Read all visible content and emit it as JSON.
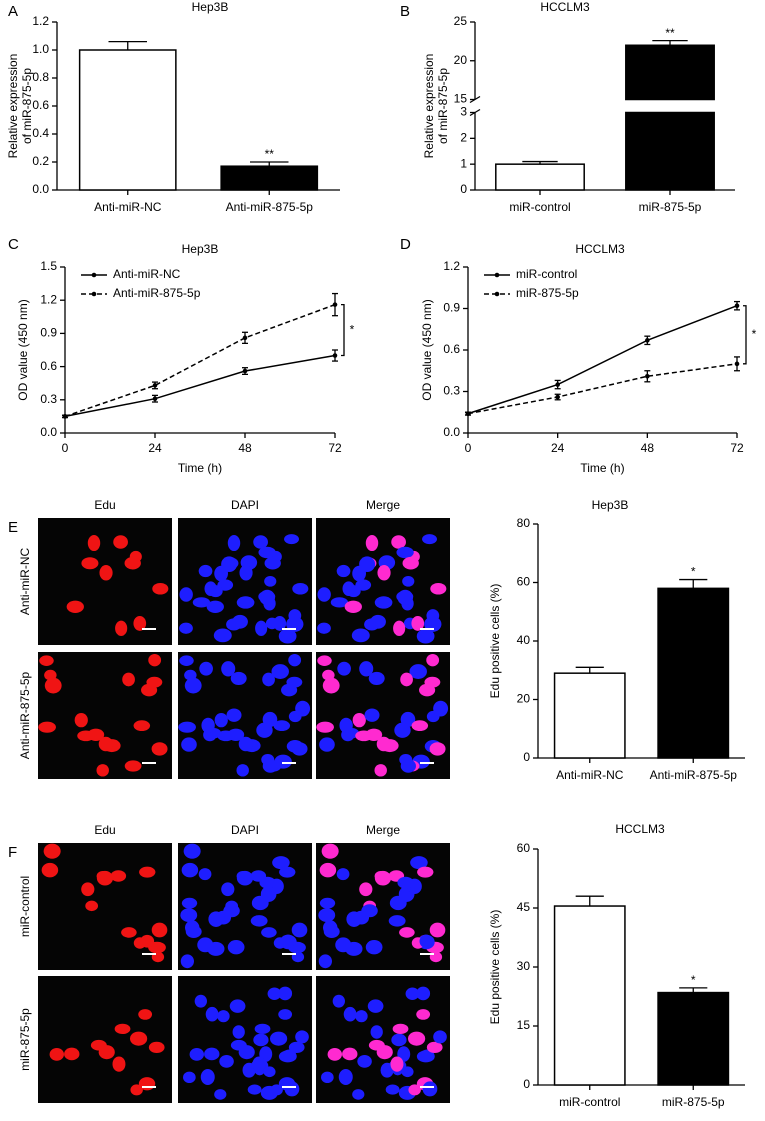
{
  "chart_data": [
    {
      "type": "bar",
      "panel": "A",
      "title": "Hep3B",
      "y_label": [
        "Relative expression",
        "of miR-875-5p"
      ],
      "categories": [
        "Anti-miR-NC",
        "Anti-miR-875-5p"
      ],
      "values": [
        1.0,
        0.17
      ],
      "errors": [
        0.06,
        0.03
      ],
      "colors": [
        "#ffffff",
        "#000000"
      ],
      "value_annotations": [
        null,
        "**"
      ],
      "ylim": [
        0,
        1.2
      ],
      "yticks": [
        {
          "value": 0,
          "label": "0.0"
        },
        0.2,
        0.4,
        0.6,
        0.8,
        {
          "value": 1,
          "label": "1.0"
        },
        1.2
      ]
    },
    {
      "type": "bar",
      "panel": "B",
      "title": "HCCLM3",
      "y_label": [
        "Relative expression",
        "of miR-875-5p"
      ],
      "categories": [
        "miR-control",
        "miR-875-5p"
      ],
      "values": [
        1.0,
        22.0
      ],
      "errors": [
        0.1,
        0.6
      ],
      "colors": [
        "#ffffff",
        "#000000"
      ],
      "value_annotations": [
        null,
        "**"
      ],
      "ylim_segments": [
        [
          0,
          3
        ],
        [
          15,
          25
        ]
      ],
      "yticks": [
        0,
        1,
        2,
        3,
        15,
        20,
        25
      ]
    },
    {
      "type": "line",
      "panel": "C",
      "title": "Hep3B",
      "x_label": "Time (h)",
      "y_label": "OD value (450 nm)",
      "x": [
        0,
        24,
        48,
        72
      ],
      "xlim": [
        0,
        72
      ],
      "xticks": [
        0,
        24,
        48,
        72
      ],
      "ylim": [
        0,
        1.5
      ],
      "yticks": [
        {
          "value": 0,
          "label": "0.0"
        },
        0.3,
        0.6,
        0.9,
        1.2,
        1.5
      ],
      "series": [
        {
          "name": "Anti-miR-NC",
          "color": "#000000",
          "line_style": "solid",
          "values": [
            0.15,
            0.31,
            0.56,
            0.7
          ],
          "errors": [
            0.01,
            0.03,
            0.03,
            0.05
          ]
        },
        {
          "name": "Anti-miR-875-5p",
          "color": "#000000",
          "line_style": "dashed",
          "values": [
            0.15,
            0.43,
            0.86,
            1.16
          ],
          "errors": [
            0.01,
            0.03,
            0.05,
            0.1
          ]
        }
      ],
      "significance": "*"
    },
    {
      "type": "line",
      "panel": "D",
      "title": "HCCLM3",
      "x_label": "Time (h)",
      "y_label": "OD value (450 nm)",
      "x": [
        0,
        24,
        48,
        72
      ],
      "xlim": [
        0,
        72
      ],
      "xticks": [
        0,
        24,
        48,
        72
      ],
      "ylim": [
        0,
        1.2
      ],
      "yticks": [
        {
          "value": 0,
          "label": "0.0"
        },
        0.3,
        0.6,
        0.9,
        1.2
      ],
      "series": [
        {
          "name": "miR-control",
          "color": "#000000",
          "line_style": "solid",
          "values": [
            0.14,
            0.35,
            0.67,
            0.92
          ],
          "errors": [
            0.01,
            0.03,
            0.03,
            0.03
          ]
        },
        {
          "name": "miR-875-5p",
          "color": "#000000",
          "line_style": "dashed",
          "values": [
            0.14,
            0.26,
            0.41,
            0.5
          ],
          "errors": [
            0.01,
            0.02,
            0.04,
            0.05
          ]
        }
      ],
      "significance": "*"
    },
    {
      "type": "bar",
      "title": "Hep3B",
      "y_label": [
        "Edu positive cells (%)"
      ],
      "categories": [
        "Anti-miR-NC",
        "Anti-miR-875-5p"
      ],
      "values": [
        29,
        58
      ],
      "errors": [
        2,
        3
      ],
      "colors": [
        "#ffffff",
        "#000000"
      ],
      "value_annotations": [
        null,
        "*"
      ],
      "ylim": [
        0,
        80
      ],
      "yticks": [
        0,
        20,
        40,
        60,
        80
      ]
    },
    {
      "type": "bar",
      "title": "HCCLM3",
      "y_label": [
        "Edu positive cells (%)"
      ],
      "categories": [
        "miR-control",
        "miR-875-5p"
      ],
      "values": [
        45.5,
        23.5
      ],
      "errors": [
        2.5,
        1.2
      ],
      "colors": [
        "#ffffff",
        "#000000"
      ],
      "value_annotations": [
        null,
        "*"
      ],
      "ylim": [
        0,
        60
      ],
      "yticks": [
        0,
        15,
        30,
        45,
        60
      ]
    }
  ],
  "image_panels": [
    {
      "panel": "E",
      "columns": [
        "Edu",
        "DAPI",
        "Merge"
      ],
      "rows": [
        "Anti-miR-NC",
        "Anti-miR-875-5p"
      ]
    },
    {
      "panel": "F",
      "columns": [
        "Edu",
        "DAPI",
        "Merge"
      ],
      "rows": [
        "miR-control",
        "miR-875-5p"
      ]
    }
  ]
}
